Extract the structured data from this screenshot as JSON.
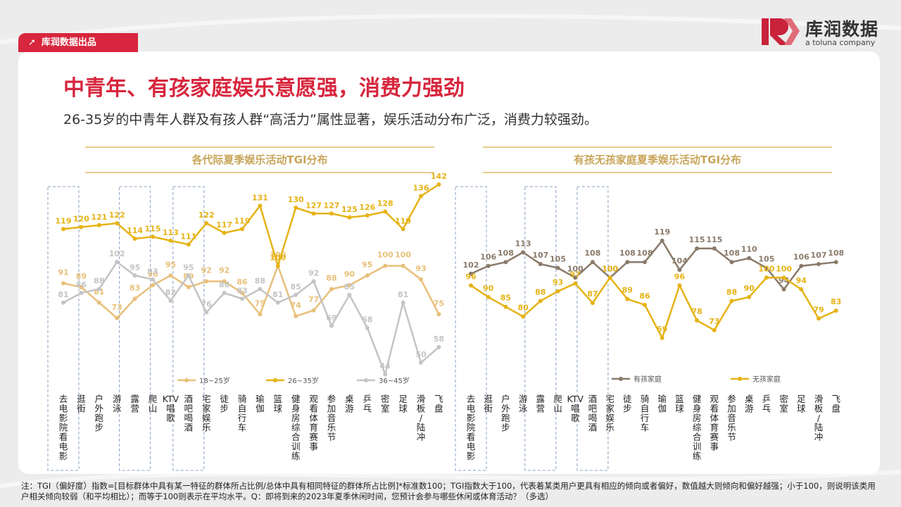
{
  "tag": {
    "label": "库润数据出品"
  },
  "logo": {
    "name": "库润数据",
    "sub": "a toluna company"
  },
  "header": {
    "title": "中青年、有孩家庭娱乐意愿强，消费力强劲",
    "subtitle": "26-35岁的中青年人群及有孩人群“高活力”属性显著，娱乐活动分布广泛，消费力较强劲。"
  },
  "chart_data": [
    {
      "type": "line",
      "title": "各代际夏季娱乐活动TGI分布",
      "categories": [
        "去电影院看电影",
        "逛街",
        "户外跑步",
        "游泳",
        "露营",
        "爬山",
        "KTV唱歌",
        "酒吧喝酒",
        "宅家娱乐",
        "徒步",
        "骑自行车",
        "瑜伽",
        "篮球",
        "健身房综合训练",
        "观看体育赛事",
        "参加音乐节",
        "桌游",
        "乒乓",
        "密室",
        "足球",
        "滑板/陆冲",
        "飞盘"
      ],
      "highlighted": [
        "去电影院看电影",
        "露营",
        "酒吧喝酒"
      ],
      "series": [
        {
          "name": "18~25岁",
          "color": "#e8c07a",
          "values": [
            91,
            89,
            81,
            73,
            83,
            90,
            95,
            89,
            92,
            92,
            86,
            75,
            100,
            74,
            77,
            88,
            90,
            95,
            100,
            100,
            93,
            75
          ]
        },
        {
          "name": "26~35岁",
          "color": "#e6b315",
          "values": [
            119,
            120,
            121,
            122,
            114,
            115,
            113,
            111,
            122,
            117,
            119,
            131,
            100,
            130,
            127,
            127,
            125,
            126,
            128,
            119,
            136,
            142
          ]
        },
        {
          "name": "36~45岁",
          "color": "#c4c4c4",
          "values": [
            81,
            86,
            88,
            102,
            95,
            93,
            82,
            95,
            76,
            86,
            83,
            88,
            81,
            85,
            92,
            69,
            85,
            68,
            44,
            81,
            50,
            58
          ]
        }
      ],
      "ylim": [
        30,
        150
      ]
    },
    {
      "type": "line",
      "title": "有孩无孩家庭夏季娱乐活动TGI分布",
      "categories": [
        "去电影院看电影",
        "逛街",
        "户外跑步",
        "游泳",
        "露营",
        "爬山",
        "KTV唱歌",
        "酒吧喝酒",
        "宅家娱乐",
        "徒步",
        "骑自行车",
        "瑜伽",
        "篮球",
        "健身房综合训练",
        "观看体育赛事",
        "参加音乐节",
        "桌游",
        "乒乓",
        "密室",
        "足球",
        "滑板/陆冲",
        "飞盘"
      ],
      "highlighted": [
        "去电影院看电影",
        "露营",
        "酒吧喝酒"
      ],
      "series": [
        {
          "name": "有孩家庭",
          "color": "#8a7a6a",
          "values": [
            102,
            106,
            108,
            113,
            107,
            105,
            100,
            108,
            100,
            108,
            108,
            119,
            104,
            115,
            115,
            108,
            110,
            105,
            94,
            106,
            107,
            108
          ]
        },
        {
          "name": "无孩家庭",
          "color": "#e6b315",
          "values": [
            96,
            90,
            85,
            80,
            88,
            93,
            97,
            87,
            100,
            89,
            86,
            69,
            96,
            78,
            73,
            88,
            90,
            100,
            100,
            94,
            79,
            83
          ]
        }
      ],
      "ylim": [
        40,
        145
      ]
    }
  ],
  "note": "注：TGI（偏好度）指数=[目标群体中具有某一特征的群体所占比例/总体中具有相同特征的群体所占比例]*标准数100；TGI指数大于100，代表着某类用户更具有相应的倾向或者偏好，数值越大则倾向和偏好越强；小于100，则说明该类用户相关倾向较弱（和平均相比）；而等于100则表示在平均水平。Q：即将到来的2023年夏季休闲时间，您预计会参与哪些休闲或体育活动？（多选）"
}
